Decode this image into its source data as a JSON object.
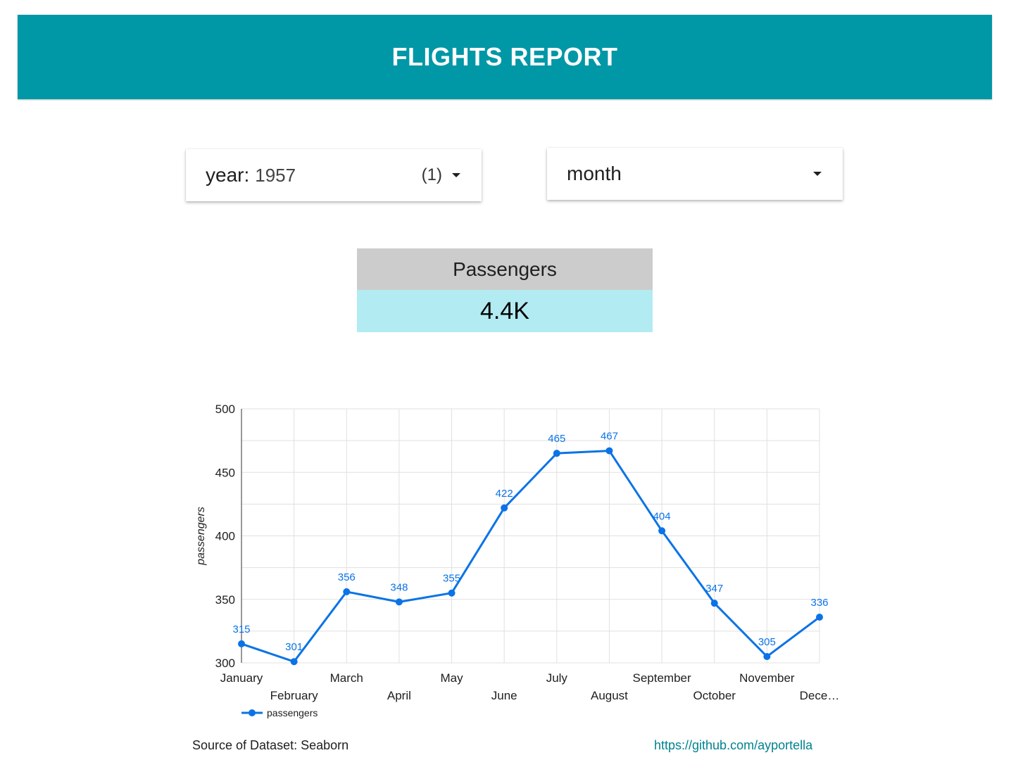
{
  "header": {
    "title": "FLIGHTS REPORT"
  },
  "filters": {
    "year": {
      "label": "year",
      "separator": ":",
      "value": "1957",
      "count": "(1)"
    },
    "month": {
      "label": "month"
    }
  },
  "scorecard": {
    "label": "Passengers",
    "value": "4.4K"
  },
  "colors": {
    "header_bg": "#0097a7",
    "score_head_bg": "#cccccc",
    "score_val_bg": "#b2ebf2",
    "series": "#0b73e6",
    "link": "#00838f"
  },
  "chart_data": {
    "type": "line",
    "categories": [
      "January",
      "February",
      "March",
      "April",
      "May",
      "June",
      "July",
      "August",
      "September",
      "October",
      "November",
      "Dece…"
    ],
    "series": [
      {
        "name": "passengers",
        "values": [
          315,
          301,
          356,
          348,
          355,
          422,
          465,
          467,
          404,
          347,
          305,
          336
        ]
      }
    ],
    "ylabel": "passengers",
    "xlabel": "",
    "ylim": [
      300,
      500
    ],
    "yticks": [
      300,
      350,
      400,
      450,
      500
    ],
    "grid": true,
    "legend": "bottom-left",
    "data_labels": true
  },
  "footer": {
    "source": "Source of Dataset: Seaborn",
    "link": "https://github.com/ayportella"
  }
}
